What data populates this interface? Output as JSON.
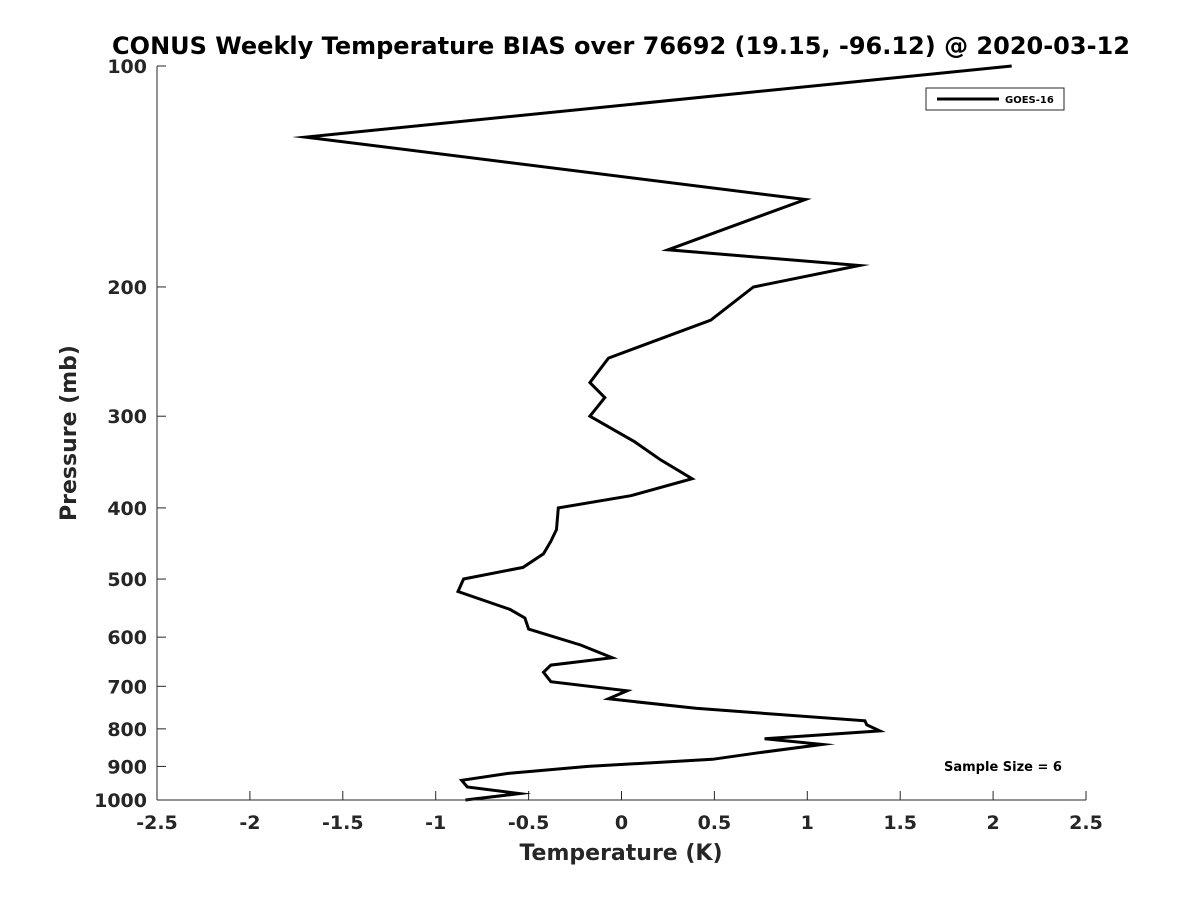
{
  "chart_data": {
    "type": "line",
    "title": "CONUS Weekly Temperature BIAS over 76692 (19.15, -96.12) @ 2020-03-12",
    "xlabel": "Temperature (K)",
    "ylabel": "Pressure (mb)",
    "xlim": [
      -2.5,
      2.5
    ],
    "ylim": [
      100,
      1000
    ],
    "y_scale": "log",
    "y_reversed": true,
    "x_ticks": [
      -2.5,
      -2,
      -1.5,
      -1,
      -0.5,
      0,
      0.5,
      1,
      1.5,
      2,
      2.5
    ],
    "x_tick_labels": [
      "-2.5",
      "-2",
      "-1.5",
      "-1",
      "-0.5",
      "0",
      "0.5",
      "1",
      "1.5",
      "2",
      "2.5"
    ],
    "y_ticks": [
      100,
      200,
      300,
      400,
      500,
      600,
      700,
      800,
      900,
      1000
    ],
    "y_tick_labels": [
      "100",
      "200",
      "300",
      "400",
      "500",
      "600",
      "700",
      "800",
      "900",
      "1000"
    ],
    "grid": false,
    "legend_position": "top-right",
    "annotation": "Sample Size = 6",
    "line_color": "#000000",
    "series": [
      {
        "name": "GOES-16",
        "points": [
          [
            2.1,
            100
          ],
          [
            -1.7,
            125
          ],
          [
            0.99,
            152
          ],
          [
            0.25,
            178
          ],
          [
            1.28,
            187
          ],
          [
            0.71,
            200
          ],
          [
            0.48,
            222
          ],
          [
            -0.07,
            250
          ],
          [
            -0.17,
            270
          ],
          [
            -0.09,
            283
          ],
          [
            -0.17,
            300
          ],
          [
            0.07,
            325
          ],
          [
            0.21,
            344
          ],
          [
            0.38,
            365
          ],
          [
            0.05,
            385
          ],
          [
            -0.34,
            400
          ],
          [
            -0.35,
            428
          ],
          [
            -0.38,
            444
          ],
          [
            -0.42,
            462
          ],
          [
            -0.53,
            482
          ],
          [
            -0.85,
            500
          ],
          [
            -0.88,
            520
          ],
          [
            -0.6,
            550
          ],
          [
            -0.52,
            565
          ],
          [
            -0.5,
            585
          ],
          [
            -0.22,
            615
          ],
          [
            -0.05,
            640
          ],
          [
            -0.38,
            655
          ],
          [
            -0.42,
            670
          ],
          [
            -0.38,
            690
          ],
          [
            0.03,
            710
          ],
          [
            -0.07,
            728
          ],
          [
            0.4,
            750
          ],
          [
            1.31,
            780
          ],
          [
            1.32,
            790
          ],
          [
            1.39,
            805
          ],
          [
            0.77,
            825
          ],
          [
            1.08,
            840
          ],
          [
            0.74,
            862
          ],
          [
            0.49,
            880
          ],
          [
            -0.18,
            900
          ],
          [
            -0.61,
            920
          ],
          [
            -0.86,
            940
          ],
          [
            -0.83,
            960
          ],
          [
            -0.55,
            980
          ],
          [
            -0.84,
            1000
          ]
        ]
      }
    ]
  }
}
